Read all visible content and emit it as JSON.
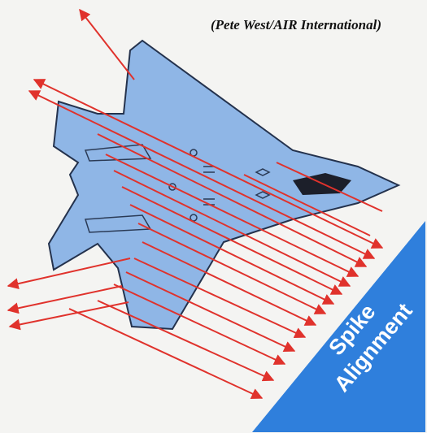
{
  "credit": "(Pete West/AIR International)",
  "label": {
    "lines": [
      "Spike",
      "Alignment"
    ]
  }
}
